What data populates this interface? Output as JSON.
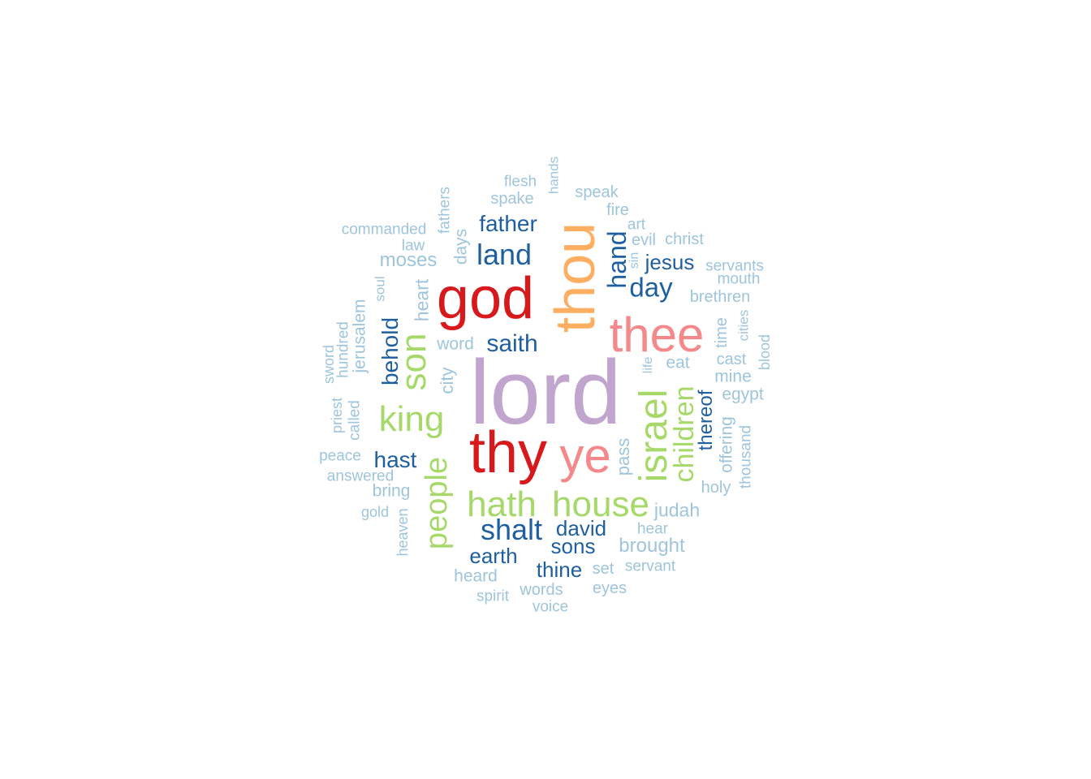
{
  "palette": {
    "purple": "#c2a5cf",
    "red": "#d7191c",
    "orange": "#fdae61",
    "pink": "#f4888a",
    "green": "#a6d96a",
    "dark_blue": "#1f5f9f",
    "light_blue": "#9ec5dc"
  },
  "words": [
    {
      "text": "lord",
      "freq": 100,
      "color": "purple",
      "vertical": false
    },
    {
      "text": "thy",
      "freq": 72,
      "color": "red",
      "vertical": false
    },
    {
      "text": "god",
      "freq": 72,
      "color": "red",
      "vertical": false
    },
    {
      "text": "thou",
      "freq": 70,
      "color": "orange",
      "vertical": true
    },
    {
      "text": "thee",
      "freq": 60,
      "color": "pink",
      "vertical": false
    },
    {
      "text": "ye",
      "freq": 60,
      "color": "pink",
      "vertical": false
    },
    {
      "text": "israel",
      "freq": 48,
      "color": "green",
      "vertical": true
    },
    {
      "text": "king",
      "freq": 45,
      "color": "green",
      "vertical": false
    },
    {
      "text": "son",
      "freq": 45,
      "color": "green",
      "vertical": true
    },
    {
      "text": "hath",
      "freq": 45,
      "color": "green",
      "vertical": false
    },
    {
      "text": "house",
      "freq": 45,
      "color": "green",
      "vertical": false
    },
    {
      "text": "people",
      "freq": 42,
      "color": "green",
      "vertical": true
    },
    {
      "text": "children",
      "freq": 38,
      "color": "green",
      "vertical": true
    },
    {
      "text": "land",
      "freq": 36,
      "color": "dark_blue",
      "vertical": false
    },
    {
      "text": "shalt",
      "freq": 36,
      "color": "dark_blue",
      "vertical": false
    },
    {
      "text": "day",
      "freq": 33,
      "color": "dark_blue",
      "vertical": false
    },
    {
      "text": "hand",
      "freq": 32,
      "color": "dark_blue",
      "vertical": true
    },
    {
      "text": "behold",
      "freq": 30,
      "color": "dark_blue",
      "vertical": true
    },
    {
      "text": "saith",
      "freq": 30,
      "color": "dark_blue",
      "vertical": false
    },
    {
      "text": "father",
      "freq": 28,
      "color": "dark_blue",
      "vertical": false
    },
    {
      "text": "hast",
      "freq": 28,
      "color": "dark_blue",
      "vertical": false
    },
    {
      "text": "earth",
      "freq": 27,
      "color": "dark_blue",
      "vertical": false
    },
    {
      "text": "sons",
      "freq": 27,
      "color": "dark_blue",
      "vertical": false
    },
    {
      "text": "david",
      "freq": 27,
      "color": "dark_blue",
      "vertical": false
    },
    {
      "text": "thine",
      "freq": 27,
      "color": "dark_blue",
      "vertical": false
    },
    {
      "text": "jesus",
      "freq": 26,
      "color": "dark_blue",
      "vertical": false
    },
    {
      "text": "thereof",
      "freq": 24,
      "color": "dark_blue",
      "vertical": true
    },
    {
      "text": "moses",
      "freq": 25,
      "color": "light_blue",
      "vertical": false
    },
    {
      "text": "brought",
      "freq": 25,
      "color": "light_blue",
      "vertical": false
    },
    {
      "text": "judah",
      "freq": 24,
      "color": "light_blue",
      "vertical": false
    },
    {
      "text": "heart",
      "freq": 23,
      "color": "light_blue",
      "vertical": true
    },
    {
      "text": "city",
      "freq": 23,
      "color": "light_blue",
      "vertical": true
    },
    {
      "text": "pass",
      "freq": 23,
      "color": "light_blue",
      "vertical": true
    },
    {
      "text": "bring",
      "freq": 22,
      "color": "light_blue",
      "vertical": false
    },
    {
      "text": "heard",
      "freq": 22,
      "color": "light_blue",
      "vertical": false
    },
    {
      "text": "word",
      "freq": 22,
      "color": "light_blue",
      "vertical": false
    },
    {
      "text": "eat",
      "freq": 22,
      "color": "light_blue",
      "vertical": false
    },
    {
      "text": "mine",
      "freq": 21,
      "color": "light_blue",
      "vertical": false
    },
    {
      "text": "egypt",
      "freq": 21,
      "color": "light_blue",
      "vertical": false
    },
    {
      "text": "days",
      "freq": 21,
      "color": "light_blue",
      "vertical": true
    },
    {
      "text": "jerusalem",
      "freq": 21,
      "color": "light_blue",
      "vertical": true
    },
    {
      "text": "offering",
      "freq": 21,
      "color": "light_blue",
      "vertical": true
    },
    {
      "text": "brethren",
      "freq": 21,
      "color": "light_blue",
      "vertical": false
    },
    {
      "text": "christ",
      "freq": 21,
      "color": "light_blue",
      "vertical": false
    },
    {
      "text": "evil",
      "freq": 21,
      "color": "light_blue",
      "vertical": false
    },
    {
      "text": "holy",
      "freq": 21,
      "color": "light_blue",
      "vertical": false
    },
    {
      "text": "cast",
      "freq": 21,
      "color": "light_blue",
      "vertical": false
    },
    {
      "text": "time",
      "freq": 20,
      "color": "light_blue",
      "vertical": true
    },
    {
      "text": "fire",
      "freq": 20,
      "color": "light_blue",
      "vertical": false
    },
    {
      "text": "speak",
      "freq": 20,
      "color": "light_blue",
      "vertical": false
    },
    {
      "text": "spake",
      "freq": 20,
      "color": "light_blue",
      "vertical": false
    },
    {
      "text": "flesh",
      "freq": 20,
      "color": "light_blue",
      "vertical": false
    },
    {
      "text": "words",
      "freq": 20,
      "color": "light_blue",
      "vertical": false
    },
    {
      "text": "eyes",
      "freq": 20,
      "color": "light_blue",
      "vertical": false
    },
    {
      "text": "set",
      "freq": 20,
      "color": "light_blue",
      "vertical": false
    },
    {
      "text": "servant",
      "freq": 19,
      "color": "light_blue",
      "vertical": false
    },
    {
      "text": "hear",
      "freq": 19,
      "color": "light_blue",
      "vertical": false
    },
    {
      "text": "voice",
      "freq": 19,
      "color": "light_blue",
      "vertical": false
    },
    {
      "text": "spirit",
      "freq": 19,
      "color": "light_blue",
      "vertical": false
    },
    {
      "text": "servants",
      "freq": 19,
      "color": "light_blue",
      "vertical": false
    },
    {
      "text": "mouth",
      "freq": 19,
      "color": "light_blue",
      "vertical": false
    },
    {
      "text": "commanded",
      "freq": 19,
      "color": "light_blue",
      "vertical": false
    },
    {
      "text": "answered",
      "freq": 19,
      "color": "light_blue",
      "vertical": false
    },
    {
      "text": "peace",
      "freq": 19,
      "color": "light_blue",
      "vertical": false
    },
    {
      "text": "law",
      "freq": 19,
      "color": "light_blue",
      "vertical": false
    },
    {
      "text": "art",
      "freq": 19,
      "color": "light_blue",
      "vertical": false
    },
    {
      "text": "thousand",
      "freq": 19,
      "color": "light_blue",
      "vertical": true
    },
    {
      "text": "fathers",
      "freq": 19,
      "color": "light_blue",
      "vertical": true
    },
    {
      "text": "called",
      "freq": 19,
      "color": "light_blue",
      "vertical": true
    },
    {
      "text": "hundred",
      "freq": 19,
      "color": "light_blue",
      "vertical": true
    },
    {
      "text": "heaven",
      "freq": 18,
      "color": "light_blue",
      "vertical": true
    },
    {
      "text": "blood",
      "freq": 18,
      "color": "light_blue",
      "vertical": true
    },
    {
      "text": "priest",
      "freq": 18,
      "color": "light_blue",
      "vertical": true
    },
    {
      "text": "gold",
      "freq": 18,
      "color": "light_blue",
      "vertical": false
    },
    {
      "text": "sword",
      "freq": 18,
      "color": "light_blue",
      "vertical": true
    },
    {
      "text": "cities",
      "freq": 17,
      "color": "light_blue",
      "vertical": true
    },
    {
      "text": "soul",
      "freq": 17,
      "color": "light_blue",
      "vertical": true
    },
    {
      "text": "hands",
      "freq": 17,
      "color": "light_blue",
      "vertical": true
    },
    {
      "text": "sin",
      "freq": 16,
      "color": "light_blue",
      "vertical": true
    },
    {
      "text": "life",
      "freq": 16,
      "color": "light_blue",
      "vertical": true
    }
  ]
}
